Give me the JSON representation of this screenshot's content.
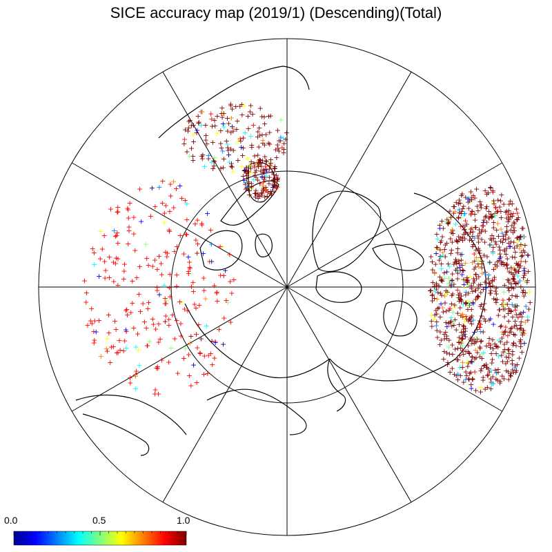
{
  "title": "SICE accuracy map (2019/1) (Descending)(Total)",
  "projection": "north-polar-stereographic",
  "meridian_spokes": 12,
  "inner_circle": true,
  "marker": "+",
  "colorbar": {
    "min_label": "0.0",
    "mid_label": "0.5",
    "max_label": "1.0",
    "colors": [
      "#00008f",
      "#0000ff",
      "#0080ff",
      "#00ffff",
      "#80ff80",
      "#ffff00",
      "#ff8000",
      "#ff0000",
      "#800000"
    ]
  },
  "clusters": [
    {
      "region": "north-america-east",
      "density": "very-high",
      "dominant_value": 1.0
    },
    {
      "region": "east-asia",
      "density": "medium",
      "dominant_value": 1.0
    },
    {
      "region": "japan",
      "density": "high",
      "dominant_value": 1.0
    },
    {
      "region": "europe",
      "density": "low",
      "dominant_value": 0.9
    }
  ]
}
